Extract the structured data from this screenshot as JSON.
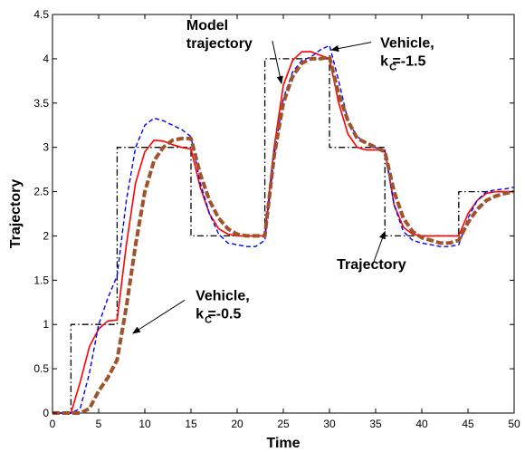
{
  "chart_data": {
    "type": "line",
    "title": "",
    "xlabel": "Time",
    "ylabel": "Trajectory",
    "xlim": [
      0,
      50
    ],
    "ylim": [
      0,
      4.5
    ],
    "xticks": [
      "0",
      "5",
      "10",
      "15",
      "20",
      "25",
      "30",
      "35",
      "40",
      "45",
      "50"
    ],
    "yticks": [
      "0",
      "0.5",
      "1",
      "1.5",
      "2",
      "2.5",
      "3",
      "3.5",
      "4",
      "4.5"
    ],
    "grid": false,
    "legend": "none",
    "series": [
      {
        "name": "Trajectory",
        "color": "#000000",
        "style": "dashdot",
        "x": [
          0,
          2,
          2,
          7,
          7,
          15,
          15,
          23,
          23,
          30,
          30,
          36,
          36,
          44,
          44,
          50
        ],
        "y": [
          0,
          0,
          1,
          1,
          3,
          3,
          2,
          2,
          4,
          4,
          3,
          3,
          2,
          2,
          2.5,
          2.5
        ]
      },
      {
        "name": "Model trajectory",
        "color": "#ff0000",
        "style": "solid",
        "x": [
          0,
          2,
          3,
          4,
          5,
          6,
          7,
          8,
          9,
          10,
          11,
          12,
          13,
          14,
          15,
          16,
          17,
          18,
          19,
          20,
          21,
          22,
          23,
          24,
          25,
          26,
          27,
          28,
          29,
          30,
          31,
          32,
          33,
          34,
          35,
          36,
          37,
          38,
          39,
          40,
          41,
          42,
          43,
          44,
          45,
          46,
          47,
          48,
          49,
          50
        ],
        "y": [
          0,
          0,
          0.35,
          0.75,
          0.95,
          1.04,
          1.05,
          1.9,
          2.6,
          2.95,
          3.08,
          3.07,
          3.03,
          3.0,
          2.98,
          2.55,
          2.25,
          2.08,
          2.02,
          2.0,
          2.0,
          2.0,
          2.0,
          3.0,
          3.7,
          3.98,
          4.08,
          4.08,
          4.04,
          4.0,
          3.5,
          3.15,
          3.0,
          2.97,
          2.97,
          2.97,
          2.35,
          2.1,
          2.02,
          2.0,
          2.0,
          2.0,
          2.0,
          2.0,
          2.25,
          2.4,
          2.48,
          2.5,
          2.5,
          2.5
        ]
      },
      {
        "name": "Vehicle, kC=-1.5",
        "color": "#0000ff",
        "style": "dashed",
        "x": [
          0,
          2,
          3,
          4,
          5,
          6,
          7,
          8,
          9,
          10,
          11,
          12,
          13,
          14,
          15,
          16,
          17,
          18,
          19,
          20,
          21,
          22,
          23,
          24,
          25,
          26,
          27,
          28,
          29,
          30,
          31,
          32,
          33,
          34,
          35,
          36,
          37,
          38,
          39,
          40,
          41,
          42,
          43,
          44,
          45,
          46,
          47,
          48,
          49,
          50
        ],
        "y": [
          0,
          0,
          0.05,
          0.45,
          1.0,
          1.3,
          1.55,
          2.4,
          3.0,
          3.25,
          3.33,
          3.3,
          3.25,
          3.2,
          3.12,
          2.6,
          2.25,
          2.02,
          1.92,
          1.9,
          1.88,
          1.88,
          1.95,
          2.9,
          3.55,
          3.85,
          3.98,
          4.02,
          4.1,
          4.15,
          3.75,
          3.3,
          3.12,
          3.05,
          3.0,
          2.95,
          2.35,
          2.05,
          1.95,
          1.92,
          1.9,
          1.88,
          1.88,
          1.9,
          2.2,
          2.4,
          2.5,
          2.52,
          2.53,
          2.55
        ]
      },
      {
        "name": "Vehicle, kC=-0.5",
        "color": "#a0522d",
        "style": "thickdashed",
        "x": [
          0,
          2,
          3,
          4,
          5,
          6,
          7,
          8,
          9,
          10,
          11,
          12,
          13,
          14,
          15,
          16,
          17,
          18,
          19,
          20,
          21,
          22,
          23,
          24,
          25,
          26,
          27,
          28,
          29,
          30,
          31,
          32,
          33,
          34,
          35,
          36,
          37,
          38,
          39,
          40,
          41,
          42,
          43,
          44,
          45,
          46,
          47,
          48,
          49,
          50
        ],
        "y": [
          0,
          0,
          0.0,
          0.05,
          0.25,
          0.4,
          0.6,
          1.2,
          1.9,
          2.5,
          2.85,
          3.0,
          3.08,
          3.1,
          3.1,
          2.7,
          2.4,
          2.2,
          2.08,
          2.02,
          2.0,
          2.0,
          2.0,
          2.9,
          3.5,
          3.8,
          3.95,
          4.0,
          4.0,
          4.02,
          3.6,
          3.3,
          3.1,
          3.05,
          3.0,
          2.95,
          2.5,
          2.2,
          2.05,
          1.98,
          1.95,
          1.92,
          1.92,
          1.95,
          2.15,
          2.3,
          2.4,
          2.45,
          2.48,
          2.5
        ]
      }
    ],
    "annotations": [
      {
        "id": "model",
        "lines": [
          "Model",
          "trajectory"
        ],
        "sub": "",
        "x": 14.5,
        "y": 4.1,
        "arrow_to": [
          24.8,
          3.72
        ]
      },
      {
        "id": "veh15",
        "lines": [
          "Vehicle,",
          "k  =-1.5"
        ],
        "sub": "C",
        "x": 35.5,
        "y": 3.9,
        "arrow_to": [
          30.2,
          4.1
        ]
      },
      {
        "id": "veh05",
        "lines": [
          "Vehicle,",
          "k  =-0.5"
        ],
        "sub": "C",
        "x": 15.5,
        "y": 1.05,
        "arrow_to": [
          8.7,
          0.9
        ]
      },
      {
        "id": "traj",
        "lines": [
          "Trajectory"
        ],
        "sub": "",
        "x": 30.8,
        "y": 1.4,
        "arrow_to": [
          36.0,
          2.05
        ]
      }
    ]
  }
}
